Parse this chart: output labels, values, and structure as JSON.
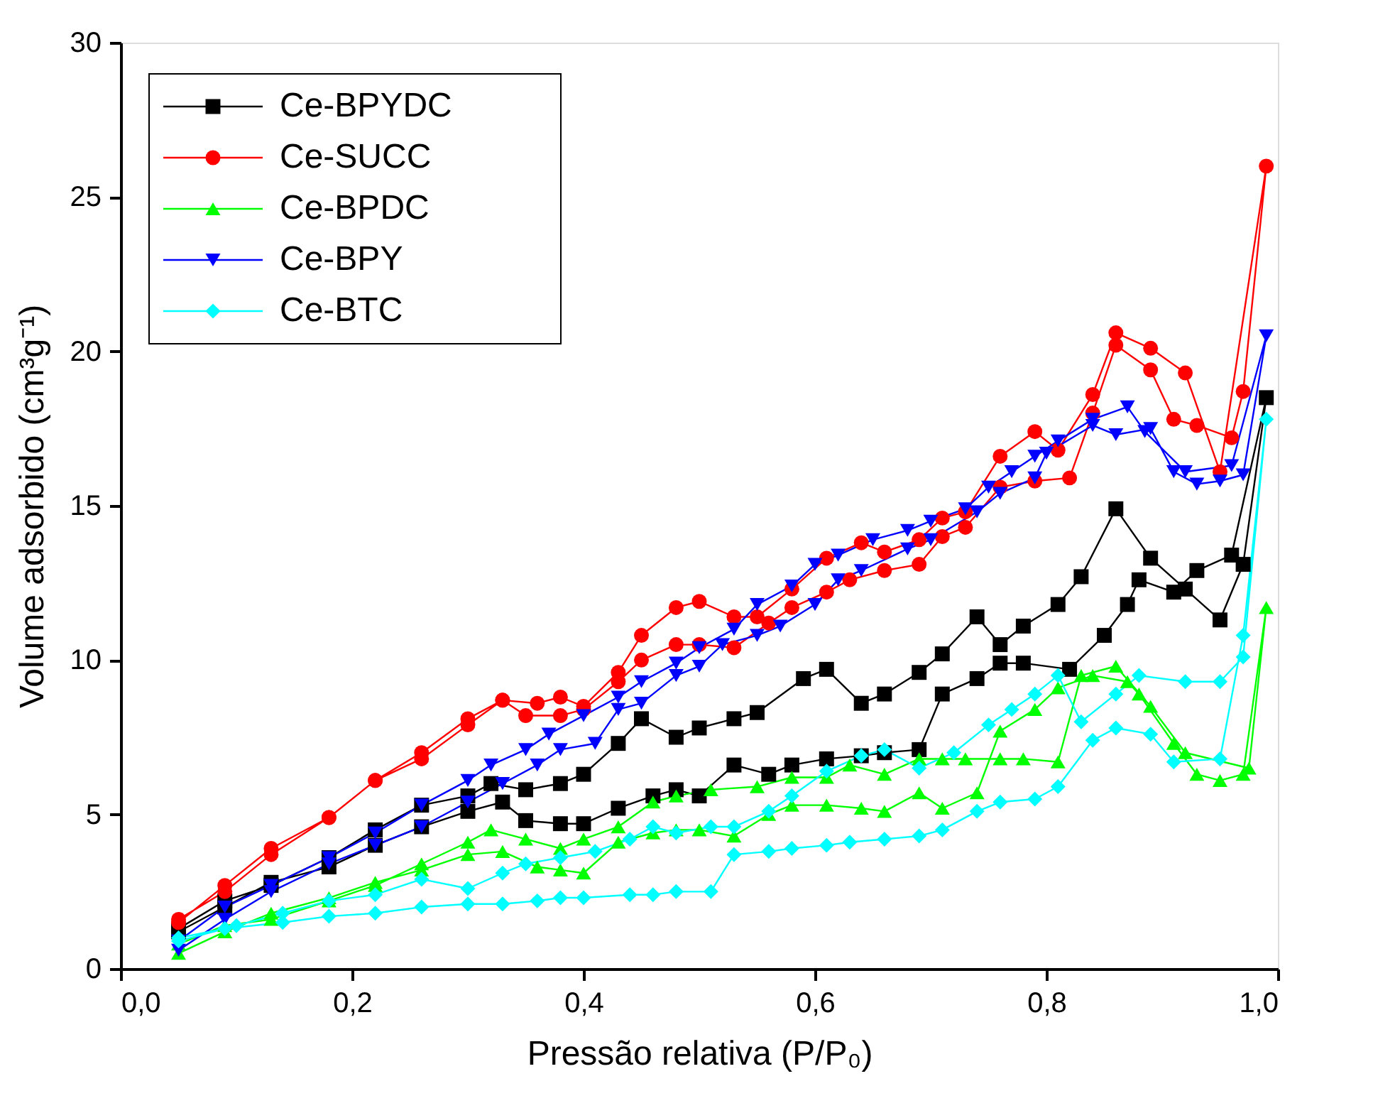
{
  "chart_data": {
    "type": "line",
    "xlabel": "Pressão relativa (P/P₀)",
    "ylabel": "Volume adsorbido (cm³g⁻¹)",
    "xlim": [
      0,
      1
    ],
    "ylim": [
      0,
      30
    ],
    "xticks": [
      {
        "value": 0,
        "label": "0,0"
      },
      {
        "value": 0.2,
        "label": "0,2"
      },
      {
        "value": 0.4,
        "label": "0,4"
      },
      {
        "value": 0.6,
        "label": "0,6"
      },
      {
        "value": 0.8,
        "label": "0,8"
      },
      {
        "value": 1,
        "label": "1,0"
      }
    ],
    "yticks": [
      0,
      5,
      10,
      15,
      20,
      25,
      30
    ],
    "grid": false,
    "legend": "top left",
    "series": [
      {
        "name": "Ce-BPYDC",
        "color": "#000000",
        "marker": "square",
        "x": [
          0.05,
          0.09,
          0.13,
          0.18,
          0.22,
          0.26,
          0.3,
          0.33,
          0.35,
          0.38,
          0.4,
          0.43,
          0.46,
          0.48,
          0.5,
          0.53,
          0.56,
          0.58,
          0.61,
          0.64,
          0.66,
          0.69,
          0.71,
          0.74,
          0.76,
          0.78,
          0.82,
          0.85,
          0.87,
          0.88,
          0.91,
          0.93,
          0.96,
          0.99,
          0.97,
          0.95,
          0.92,
          0.89,
          0.86,
          0.83,
          0.81,
          0.78,
          0.76,
          0.74,
          0.71,
          0.69,
          0.66,
          0.64,
          0.61,
          0.59,
          0.55,
          0.53,
          0.5,
          0.48,
          0.45,
          0.43,
          0.4,
          0.38,
          0.35,
          0.32,
          0.3,
          0.26,
          0.22,
          0.18,
          0.13,
          0.09,
          0.05
        ],
        "values": [
          1.2,
          2.0,
          2.8,
          3.3,
          4.0,
          4.6,
          5.1,
          5.4,
          4.8,
          4.7,
          4.7,
          5.2,
          5.6,
          5.8,
          5.6,
          6.6,
          6.3,
          6.6,
          6.8,
          6.9,
          7.0,
          7.1,
          8.9,
          9.4,
          9.9,
          9.9,
          9.7,
          10.8,
          11.8,
          12.6,
          12.2,
          12.9,
          13.4,
          18.5,
          13.1,
          11.3,
          12.3,
          13.3,
          14.9,
          12.7,
          11.8,
          11.1,
          10.5,
          11.4,
          10.2,
          9.6,
          8.9,
          8.6,
          9.7,
          9.4,
          8.3,
          8.1,
          7.8,
          7.5,
          8.1,
          7.3,
          6.3,
          6.0,
          5.8,
          6.0,
          5.6,
          5.3,
          4.5,
          3.6,
          2.7,
          2.2,
          1.3
        ]
      },
      {
        "name": "Ce-SUCC",
        "color": "#ff0000",
        "marker": "circle",
        "x": [
          0.05,
          0.09,
          0.13,
          0.18,
          0.22,
          0.26,
          0.3,
          0.33,
          0.35,
          0.38,
          0.4,
          0.43,
          0.45,
          0.48,
          0.5,
          0.53,
          0.56,
          0.58,
          0.61,
          0.63,
          0.66,
          0.69,
          0.71,
          0.73,
          0.76,
          0.79,
          0.82,
          0.84,
          0.86,
          0.89,
          0.91,
          0.93,
          0.96,
          0.97,
          0.99,
          0.95,
          0.92,
          0.89,
          0.86,
          0.84,
          0.81,
          0.79,
          0.76,
          0.73,
          0.71,
          0.69,
          0.66,
          0.64,
          0.61,
          0.58,
          0.55,
          0.53,
          0.5,
          0.48,
          0.45,
          0.43,
          0.4,
          0.38,
          0.36,
          0.33,
          0.3,
          0.26,
          0.22,
          0.18,
          0.13,
          0.09,
          0.05
        ],
        "values": [
          1.6,
          2.5,
          3.7,
          4.9,
          6.1,
          6.8,
          7.9,
          8.7,
          8.2,
          8.2,
          8.4,
          9.3,
          10.0,
          10.5,
          10.5,
          10.4,
          11.2,
          11.7,
          12.2,
          12.6,
          12.9,
          13.1,
          14.0,
          14.3,
          15.6,
          15.8,
          15.9,
          18.0,
          20.2,
          19.4,
          17.8,
          17.6,
          17.2,
          18.7,
          26.0,
          16.1,
          19.3,
          20.1,
          20.6,
          18.6,
          16.8,
          17.4,
          16.6,
          14.8,
          14.6,
          13.9,
          13.5,
          13.8,
          13.3,
          12.3,
          11.4,
          11.4,
          11.9,
          11.7,
          10.8,
          9.6,
          8.5,
          8.8,
          8.6,
          8.7,
          8.1,
          7.0,
          6.1,
          4.9,
          3.9,
          2.7,
          1.5
        ]
      },
      {
        "name": "Ce-BPDC",
        "color": "#00ff00",
        "marker": "triangle",
        "x": [
          0.05,
          0.09,
          0.13,
          0.18,
          0.22,
          0.26,
          0.3,
          0.33,
          0.36,
          0.38,
          0.4,
          0.43,
          0.46,
          0.48,
          0.5,
          0.53,
          0.56,
          0.58,
          0.61,
          0.64,
          0.66,
          0.69,
          0.71,
          0.74,
          0.76,
          0.79,
          0.81,
          0.84,
          0.87,
          0.88,
          0.91,
          0.93,
          0.95,
          0.97,
          0.99,
          0.975,
          0.92,
          0.89,
          0.86,
          0.83,
          0.81,
          0.78,
          0.76,
          0.73,
          0.71,
          0.69,
          0.66,
          0.63,
          0.61,
          0.58,
          0.55,
          0.51,
          0.48,
          0.46,
          0.43,
          0.4,
          0.38,
          0.35,
          0.32,
          0.3,
          0.26,
          0.22,
          0.18,
          0.13,
          0.09,
          0.05
        ],
        "values": [
          0.5,
          1.2,
          1.8,
          2.3,
          2.8,
          3.2,
          3.7,
          3.8,
          3.3,
          3.2,
          3.1,
          4.1,
          4.4,
          4.5,
          4.5,
          4.3,
          5.0,
          5.3,
          5.3,
          5.2,
          5.1,
          5.7,
          5.2,
          5.7,
          7.7,
          8.4,
          9.1,
          9.5,
          9.3,
          8.9,
          7.3,
          6.3,
          6.1,
          6.3,
          11.7,
          6.5,
          7.0,
          8.5,
          9.8,
          9.5,
          6.7,
          6.8,
          6.8,
          6.8,
          6.8,
          6.8,
          6.3,
          6.6,
          6.2,
          6.2,
          5.9,
          5.8,
          5.6,
          5.4,
          4.6,
          4.2,
          3.9,
          4.2,
          4.5,
          4.1,
          3.4,
          2.7,
          2.2,
          1.6,
          1.4,
          0.8
        ]
      },
      {
        "name": "Ce-BPY",
        "color": "#0000ff",
        "marker": "triangle-down",
        "x": [
          0.05,
          0.09,
          0.13,
          0.18,
          0.22,
          0.26,
          0.3,
          0.33,
          0.36,
          0.38,
          0.41,
          0.43,
          0.45,
          0.48,
          0.5,
          0.52,
          0.55,
          0.57,
          0.6,
          0.62,
          0.64,
          0.68,
          0.7,
          0.74,
          0.76,
          0.79,
          0.8,
          0.84,
          0.86,
          0.89,
          0.91,
          0.93,
          0.95,
          0.97,
          0.99,
          0.96,
          0.92,
          0.885,
          0.87,
          0.84,
          0.81,
          0.79,
          0.77,
          0.75,
          0.73,
          0.7,
          0.68,
          0.65,
          0.62,
          0.6,
          0.58,
          0.55,
          0.53,
          0.5,
          0.48,
          0.45,
          0.43,
          0.4,
          0.37,
          0.35,
          0.32,
          0.3,
          0.26,
          0.22,
          0.18,
          0.13,
          0.09,
          0.05
        ],
        "values": [
          0.6,
          1.6,
          2.5,
          3.4,
          4.0,
          4.6,
          5.4,
          6.0,
          6.6,
          7.1,
          7.3,
          8.4,
          8.6,
          9.5,
          9.8,
          10.5,
          10.8,
          11.1,
          11.8,
          12.6,
          12.9,
          13.6,
          13.9,
          14.8,
          15.4,
          15.9,
          16.7,
          17.6,
          17.3,
          17.5,
          16.1,
          15.7,
          15.8,
          16.0,
          20.5,
          16.3,
          16.1,
          17.4,
          18.2,
          17.8,
          17.1,
          16.6,
          16.1,
          15.6,
          14.9,
          14.5,
          14.2,
          13.9,
          13.4,
          13.1,
          12.4,
          11.8,
          11.0,
          10.4,
          9.9,
          9.3,
          8.8,
          8.2,
          7.6,
          7.1,
          6.6,
          6.1,
          5.3,
          4.4,
          3.6,
          2.7,
          2.0,
          0.9
        ]
      },
      {
        "name": "Ce-BTC",
        "color": "#00ffff",
        "marker": "diamond",
        "x": [
          0.05,
          0.09,
          0.14,
          0.18,
          0.22,
          0.26,
          0.3,
          0.33,
          0.36,
          0.38,
          0.4,
          0.44,
          0.46,
          0.48,
          0.51,
          0.53,
          0.56,
          0.58,
          0.61,
          0.63,
          0.66,
          0.69,
          0.71,
          0.74,
          0.76,
          0.79,
          0.81,
          0.84,
          0.86,
          0.89,
          0.91,
          0.95,
          0.97,
          0.99,
          0.97,
          0.95,
          0.92,
          0.88,
          0.86,
          0.83,
          0.81,
          0.79,
          0.77,
          0.75,
          0.72,
          0.69,
          0.66,
          0.64,
          0.61,
          0.58,
          0.56,
          0.53,
          0.51,
          0.48,
          0.46,
          0.44,
          0.41,
          0.38,
          0.35,
          0.33,
          0.3,
          0.26,
          0.22,
          0.18,
          0.14,
          0.1,
          0.05
        ],
        "values": [
          1.0,
          1.3,
          1.5,
          1.7,
          1.8,
          2.0,
          2.1,
          2.1,
          2.2,
          2.3,
          2.3,
          2.4,
          2.4,
          2.5,
          2.5,
          3.7,
          3.8,
          3.9,
          4.0,
          4.1,
          4.2,
          4.3,
          4.5,
          5.1,
          5.4,
          5.5,
          5.9,
          7.4,
          7.8,
          7.6,
          6.7,
          6.8,
          10.8,
          17.8,
          10.1,
          9.3,
          9.3,
          9.5,
          8.9,
          8.0,
          9.5,
          8.9,
          8.4,
          7.9,
          7.0,
          6.5,
          7.1,
          6.9,
          6.4,
          5.6,
          5.1,
          4.6,
          4.6,
          4.4,
          4.6,
          4.2,
          3.8,
          3.6,
          3.4,
          3.1,
          2.6,
          2.9,
          2.4,
          2.2,
          1.8,
          1.4,
          0.9
        ]
      }
    ]
  }
}
